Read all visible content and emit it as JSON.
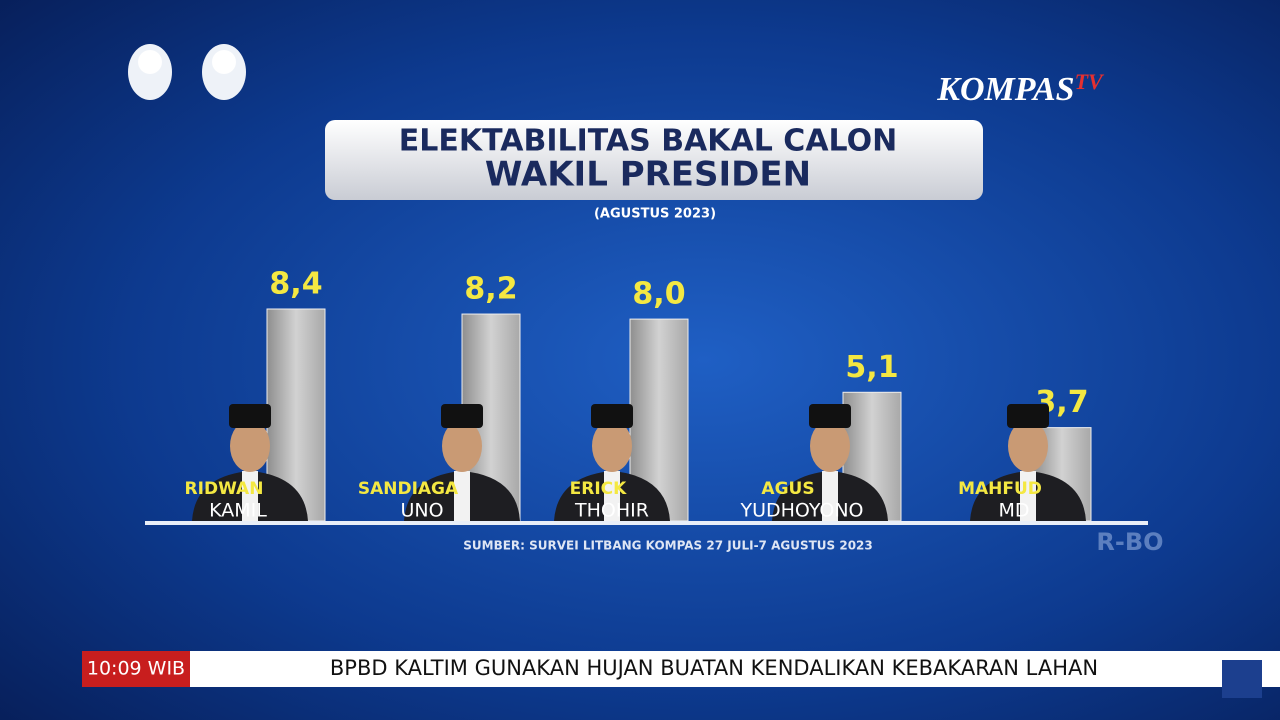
{
  "brand": {
    "name": "KOMPAS",
    "suffix": "TV"
  },
  "chart_data": {
    "type": "bar",
    "title": [
      "ELEKTABILITAS BAKAL CALON",
      "WAKIL PRESIDEN"
    ],
    "subtitle": "(AGUSTUS 2023)",
    "categories": [
      [
        "RIDWAN",
        "KAMIL"
      ],
      [
        "SANDIAGA",
        "UNO"
      ],
      [
        "ERICK",
        "THOHIR"
      ],
      [
        "AGUS",
        "YUDHOYONO"
      ],
      [
        "MAHFUD",
        "MD"
      ]
    ],
    "values": [
      8.4,
      8.2,
      8.0,
      5.1,
      3.7
    ],
    "value_labels": [
      "8,4",
      "8,2",
      "8,0",
      "5,1",
      "3,7"
    ],
    "color": "#b8b8b8",
    "label_color": "#f4e842",
    "source": "SUMBER: SURVEI LITBANG KOMPAS 27 JULI-7 AGUSTUS 2023"
  },
  "watermark": "R-BO",
  "ticker": {
    "time": "10:09 WIB",
    "headline": "BPBD KALTIM GUNAKAN HUJAN BUATAN KENDALIKAN KEBAKARAN LAHAN"
  }
}
